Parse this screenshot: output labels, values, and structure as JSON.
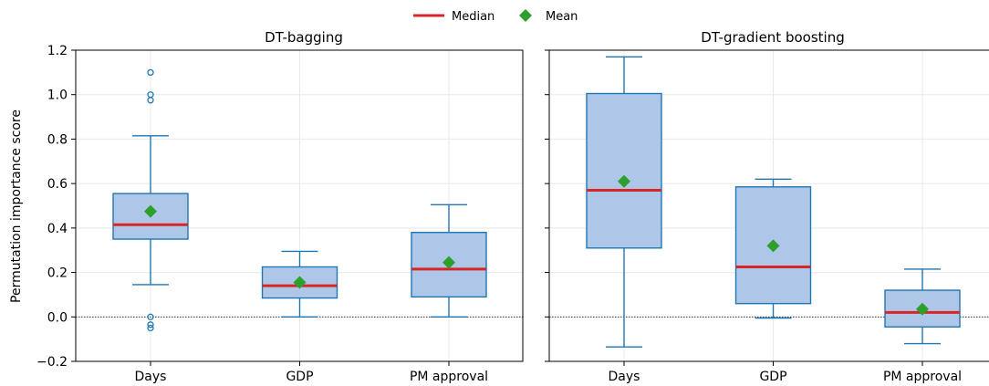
{
  "legend": {
    "placement": "top-center",
    "items": [
      {
        "label": "Median",
        "marker": "line",
        "color": "#d62728"
      },
      {
        "label": "Mean",
        "marker": "diamond",
        "color": "#2ca02c"
      }
    ]
  },
  "colors": {
    "box_fill": "#aec7e8",
    "box_edge": "#1f77b4",
    "median": "#d62728",
    "mean": "#2ca02c",
    "grid": "#e8e8e8"
  },
  "chart_data": [
    {
      "type": "box",
      "title": "DT-bagging",
      "xlabel": "",
      "ylabel": "Permutation importance score",
      "ylim": [
        -0.2,
        1.2
      ],
      "yticks": [
        -0.2,
        0.0,
        0.2,
        0.4,
        0.6,
        0.8,
        1.0,
        1.2
      ],
      "ytick_labels": [
        "−0.2",
        "0.0",
        "0.2",
        "0.4",
        "0.6",
        "0.8",
        "1.0",
        "1.2"
      ],
      "grid": true,
      "zero_line": "dotted",
      "categories": [
        "Days",
        "GDP",
        "PM approval"
      ],
      "boxes": [
        {
          "whisker_low": 0.145,
          "q1": 0.35,
          "median": 0.415,
          "q3": 0.555,
          "whisker_high": 0.815,
          "mean": 0.475,
          "outliers": [
            1.1,
            1.0,
            0.975,
            0.0,
            -0.035,
            -0.05
          ]
        },
        {
          "whisker_low": 0.0,
          "q1": 0.085,
          "median": 0.14,
          "q3": 0.225,
          "whisker_high": 0.295,
          "mean": 0.155,
          "outliers": []
        },
        {
          "whisker_low": 0.0,
          "q1": 0.09,
          "median": 0.215,
          "q3": 0.38,
          "whisker_high": 0.505,
          "mean": 0.245,
          "outliers": []
        }
      ]
    },
    {
      "type": "box",
      "title": "DT-gradient boosting",
      "xlabel": "",
      "ylabel": "",
      "ylim": [
        -0.2,
        1.2
      ],
      "yticks": [
        -0.2,
        0.0,
        0.2,
        0.4,
        0.6,
        0.8,
        1.0,
        1.2
      ],
      "ytick_labels": [],
      "grid": true,
      "zero_line": "dotted",
      "categories": [
        "Days",
        "GDP",
        "PM approval"
      ],
      "boxes": [
        {
          "whisker_low": -0.135,
          "q1": 0.31,
          "median": 0.57,
          "q3": 1.005,
          "whisker_high": 1.17,
          "mean": 0.61,
          "outliers": []
        },
        {
          "whisker_low": -0.005,
          "q1": 0.06,
          "median": 0.225,
          "q3": 0.585,
          "whisker_high": 0.62,
          "mean": 0.32,
          "outliers": []
        },
        {
          "whisker_low": -0.12,
          "q1": -0.045,
          "median": 0.02,
          "q3": 0.12,
          "whisker_high": 0.215,
          "mean": 0.035,
          "outliers": []
        }
      ]
    }
  ]
}
